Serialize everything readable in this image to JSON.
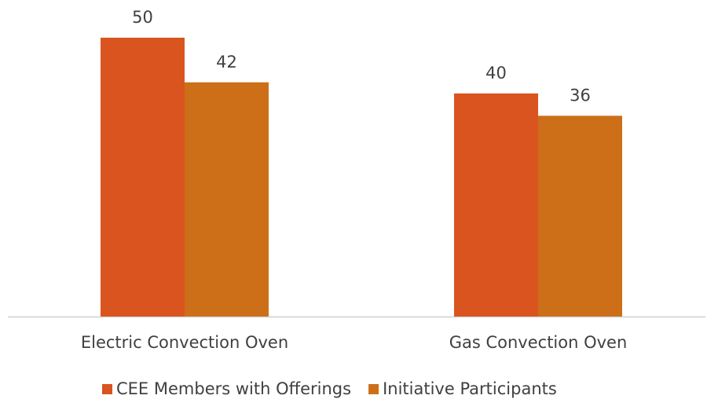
{
  "chart_data": {
    "type": "bar",
    "categories": [
      "Electric Convection Oven",
      "Gas Convection Oven"
    ],
    "series": [
      {
        "name": "CEE Members with Offerings",
        "color": "#d9541e",
        "values": [
          50,
          40
        ]
      },
      {
        "name": "Initiative Participants",
        "color": "#cd6f19",
        "values": [
          42,
          36
        ]
      }
    ],
    "ylim": [
      0,
      50
    ],
    "legend": "bottom"
  }
}
